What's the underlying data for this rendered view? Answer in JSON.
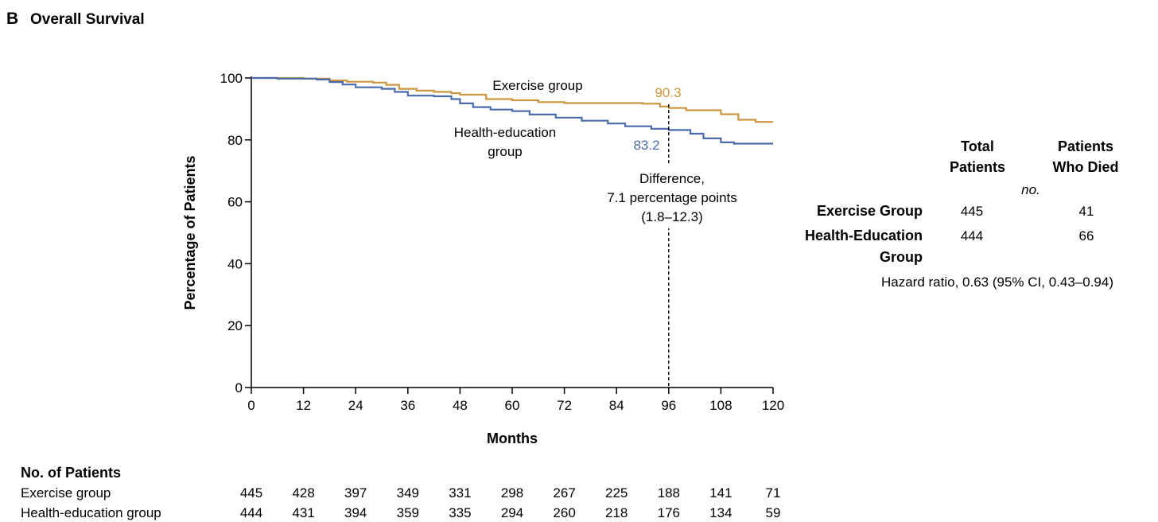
{
  "panel": {
    "letter": "B",
    "title": "Overall Survival"
  },
  "chart_data": {
    "type": "line",
    "title": "Overall Survival",
    "xlabel": "Months",
    "ylabel": "Percentage of Patients",
    "xlim": [
      0,
      120
    ],
    "ylim": [
      0,
      100
    ],
    "xticks": [
      0,
      12,
      24,
      36,
      48,
      60,
      72,
      84,
      96,
      108,
      120
    ],
    "yticks": [
      0,
      20,
      40,
      60,
      80,
      100
    ],
    "grid": false,
    "series": [
      {
        "name": "Exercise group",
        "color": "#cc9540",
        "label_lines": [
          "Exercise group"
        ],
        "step_points": [
          [
            0,
            100
          ],
          [
            5,
            100
          ],
          [
            12,
            99.8
          ],
          [
            18,
            99.2
          ],
          [
            22,
            98.8
          ],
          [
            28,
            98.5
          ],
          [
            31,
            97.8
          ],
          [
            34,
            96.5
          ],
          [
            38,
            95.9
          ],
          [
            42,
            95.5
          ],
          [
            46,
            95.1
          ],
          [
            48,
            94.6
          ],
          [
            54,
            93.2
          ],
          [
            60,
            92.8
          ],
          [
            66,
            92.2
          ],
          [
            72,
            91.9
          ],
          [
            84,
            91.9
          ],
          [
            90,
            91.7
          ],
          [
            94,
            90.8
          ],
          [
            96,
            90.3
          ],
          [
            100,
            89.6
          ],
          [
            108,
            88.3
          ],
          [
            112,
            86.5
          ],
          [
            116,
            85.8
          ],
          [
            120,
            85.8
          ]
        ],
        "annotation": {
          "x": 96,
          "value": "90.3"
        }
      },
      {
        "name": "Health-education group",
        "color": "#4a6aab",
        "label_lines": [
          "Health-education",
          "group"
        ],
        "step_points": [
          [
            0,
            100
          ],
          [
            6,
            99.8
          ],
          [
            15,
            99.5
          ],
          [
            18,
            98.7
          ],
          [
            21,
            97.9
          ],
          [
            24,
            97.0
          ],
          [
            30,
            96.5
          ],
          [
            33,
            95.5
          ],
          [
            36,
            94.3
          ],
          [
            42,
            94.1
          ],
          [
            46,
            93.2
          ],
          [
            48,
            91.8
          ],
          [
            51,
            90.6
          ],
          [
            55,
            89.8
          ],
          [
            60,
            89.3
          ],
          [
            64,
            88.2
          ],
          [
            70,
            87.2
          ],
          [
            76,
            86.2
          ],
          [
            82,
            85.3
          ],
          [
            86,
            84.4
          ],
          [
            92,
            83.6
          ],
          [
            96,
            83.2
          ],
          [
            101,
            82.0
          ],
          [
            104,
            80.5
          ],
          [
            108,
            79.2
          ],
          [
            111,
            78.8
          ],
          [
            120,
            78.8
          ]
        ],
        "annotation": {
          "x": 96,
          "value": "83.2"
        }
      }
    ],
    "reference_line": {
      "x": 96,
      "style": "dashed"
    },
    "difference_label": [
      "Difference,",
      "7.1 percentage points",
      "(1.8–12.3)"
    ],
    "risk_table": {
      "title": "No. of Patients",
      "times": [
        0,
        12,
        24,
        36,
        48,
        60,
        72,
        84,
        96,
        108,
        120
      ],
      "rows": [
        {
          "name": "Exercise group",
          "values": [
            445,
            428,
            397,
            349,
            331,
            298,
            267,
            225,
            188,
            141,
            71
          ]
        },
        {
          "name": "Health-education group",
          "values": [
            444,
            431,
            394,
            359,
            335,
            294,
            260,
            218,
            176,
            134,
            59
          ]
        }
      ]
    }
  },
  "summary_table": {
    "header": {
      "col1": [
        "Total",
        "Patients"
      ],
      "col2": [
        "Patients",
        "Who Died"
      ],
      "unit": "no."
    },
    "rows": [
      {
        "name_lines": [
          "Exercise Group"
        ],
        "total": "445",
        "died": "41"
      },
      {
        "name_lines": [
          "Health-Education",
          "Group"
        ],
        "total": "444",
        "died": "66"
      }
    ],
    "hazard_ratio": "Hazard ratio, 0.63 (95% CI, 0.43–0.94)"
  }
}
